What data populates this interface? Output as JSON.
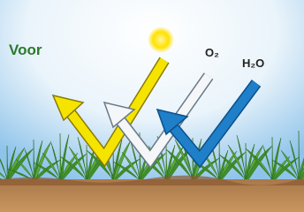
{
  "labels": {
    "voor": "Voor",
    "oxygen": "O₂",
    "water": "H₂O"
  }
}
